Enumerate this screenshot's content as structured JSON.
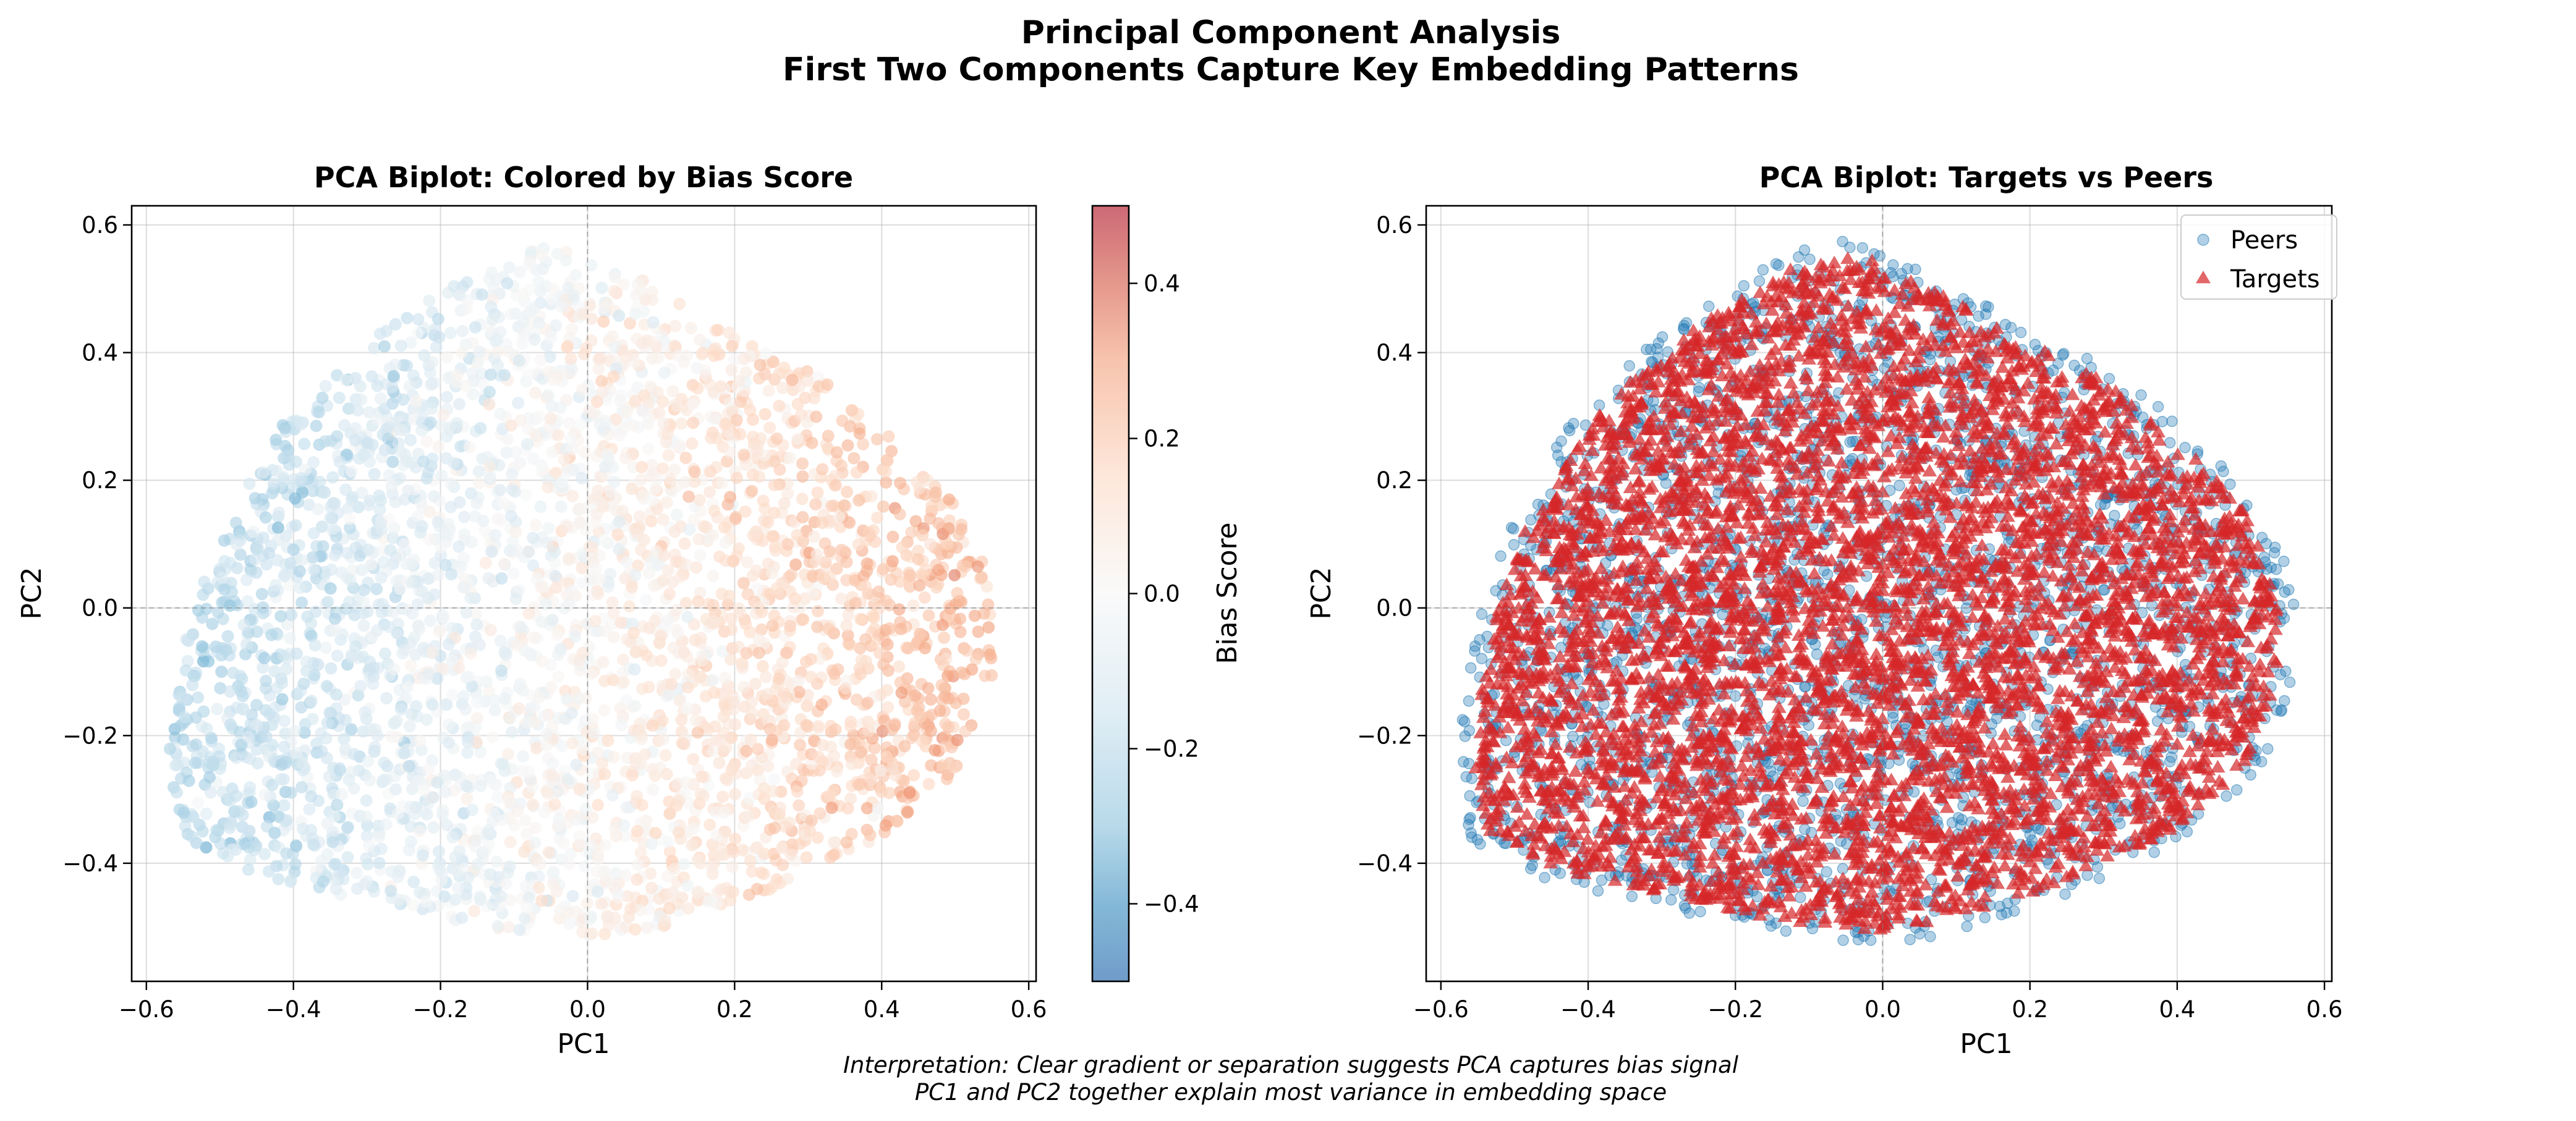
{
  "figure": {
    "title_line1": "Principal Component Analysis",
    "title_line2": "First Two Components Capture Key Embedding Patterns",
    "note_line1": "Interpretation: Clear gradient or separation suggests PCA captures bias signal",
    "note_line2": "PC1 and PC2 together explain most variance in embedding space"
  },
  "chart_data": [
    {
      "type": "scatter",
      "title": "PCA Biplot: Colored by Bias Score",
      "xlabel": "PC1",
      "ylabel": "PC2",
      "xlim": [
        -0.62,
        0.61
      ],
      "ylim": [
        -0.585,
        0.63
      ],
      "xticks": [
        -0.6,
        -0.4,
        -0.2,
        0.0,
        0.2,
        0.4,
        0.6
      ],
      "xtick_labels": [
        "−0.6",
        "−0.4",
        "−0.2",
        "0.0",
        "0.2",
        "0.4",
        "0.6"
      ],
      "yticks": [
        -0.4,
        -0.2,
        0.0,
        0.2,
        0.4,
        0.6
      ],
      "ytick_labels": [
        "−0.4",
        "−0.2",
        "0.0",
        "0.2",
        "0.4",
        "0.6"
      ],
      "grid": true,
      "reference_lines": {
        "x": 0.0,
        "y": 0.0
      },
      "colormap": "RdBu_r",
      "colorbar": {
        "label": "Bias Score",
        "range": [
          -0.5,
          0.5
        ],
        "ticks": [
          -0.4,
          -0.2,
          0.0,
          0.2,
          0.4
        ],
        "tick_labels": [
          "−0.4",
          "−0.2",
          "0.0",
          "0.2",
          "0.4"
        ]
      },
      "point_cloud": {
        "description_hint": "dense cloud of points; bias score increases from left (blue, about -0.3) to right (red, about +0.2)",
        "pc1_range": [
          -0.57,
          0.55
        ],
        "pc2_range": [
          -0.52,
          0.57
        ],
        "outline": [
          [
            -0.57,
            -0.24
          ],
          [
            -0.55,
            -0.36
          ],
          [
            -0.45,
            -0.42
          ],
          [
            -0.3,
            -0.46
          ],
          [
            -0.15,
            -0.5
          ],
          [
            0.0,
            -0.52
          ],
          [
            0.1,
            -0.5
          ],
          [
            0.25,
            -0.44
          ],
          [
            0.4,
            -0.36
          ],
          [
            0.5,
            -0.26
          ],
          [
            0.55,
            -0.12
          ],
          [
            0.55,
            0.04
          ],
          [
            0.5,
            0.16
          ],
          [
            0.42,
            0.26
          ],
          [
            0.32,
            0.36
          ],
          [
            0.18,
            0.44
          ],
          [
            0.05,
            0.53
          ],
          [
            -0.04,
            0.57
          ],
          [
            -0.12,
            0.55
          ],
          [
            -0.22,
            0.48
          ],
          [
            -0.32,
            0.4
          ],
          [
            -0.42,
            0.28
          ],
          [
            -0.5,
            0.12
          ],
          [
            -0.55,
            -0.05
          ]
        ],
        "bias_trend": {
          "at_pc1_-0.5": -0.3,
          "at_pc1_0.0": 0.0,
          "at_pc1_0.4": 0.2
        }
      }
    },
    {
      "type": "scatter",
      "title": "PCA Biplot: Targets vs Peers",
      "xlabel": "PC1",
      "ylabel": "PC2",
      "xlim": [
        -0.62,
        0.61
      ],
      "ylim": [
        -0.585,
        0.63
      ],
      "xticks": [
        -0.6,
        -0.4,
        -0.2,
        0.0,
        0.2,
        0.4,
        0.6
      ],
      "xtick_labels": [
        "−0.6",
        "−0.4",
        "−0.2",
        "0.0",
        "0.2",
        "0.4",
        "0.6"
      ],
      "yticks": [
        -0.4,
        -0.2,
        0.0,
        0.2,
        0.4,
        0.6
      ],
      "ytick_labels": [
        "−0.4",
        "−0.2",
        "0.0",
        "0.2",
        "0.4",
        "0.6"
      ],
      "grid": true,
      "reference_lines": {
        "x": 0.0,
        "y": 0.0
      },
      "legend_position": "top-right",
      "series": [
        {
          "name": "Peers",
          "marker": "circle",
          "color": "#1f77b4"
        },
        {
          "name": "Targets",
          "marker": "triangle",
          "color": "#d62728"
        }
      ],
      "point_cloud": {
        "pc1_range": [
          -0.57,
          0.55
        ],
        "pc2_range": [
          -0.52,
          0.57
        ],
        "outline": [
          [
            -0.57,
            -0.24
          ],
          [
            -0.55,
            -0.36
          ],
          [
            -0.45,
            -0.42
          ],
          [
            -0.3,
            -0.46
          ],
          [
            -0.15,
            -0.5
          ],
          [
            0.0,
            -0.52
          ],
          [
            0.1,
            -0.5
          ],
          [
            0.25,
            -0.44
          ],
          [
            0.4,
            -0.36
          ],
          [
            0.5,
            -0.26
          ],
          [
            0.55,
            -0.12
          ],
          [
            0.55,
            0.04
          ],
          [
            0.5,
            0.16
          ],
          [
            0.42,
            0.26
          ],
          [
            0.32,
            0.36
          ],
          [
            0.18,
            0.44
          ],
          [
            0.05,
            0.53
          ],
          [
            -0.04,
            0.57
          ],
          [
            -0.12,
            0.55
          ],
          [
            -0.22,
            0.48
          ],
          [
            -0.32,
            0.4
          ],
          [
            -0.42,
            0.28
          ],
          [
            -0.5,
            0.12
          ],
          [
            -0.55,
            -0.05
          ]
        ]
      }
    }
  ],
  "colors": {
    "peers": "#1f77b4",
    "targets": "#d62728",
    "cmap_neg": "#2166ac",
    "cmap_mid": "#f7f7f7",
    "cmap_pos": "#b2182b"
  }
}
